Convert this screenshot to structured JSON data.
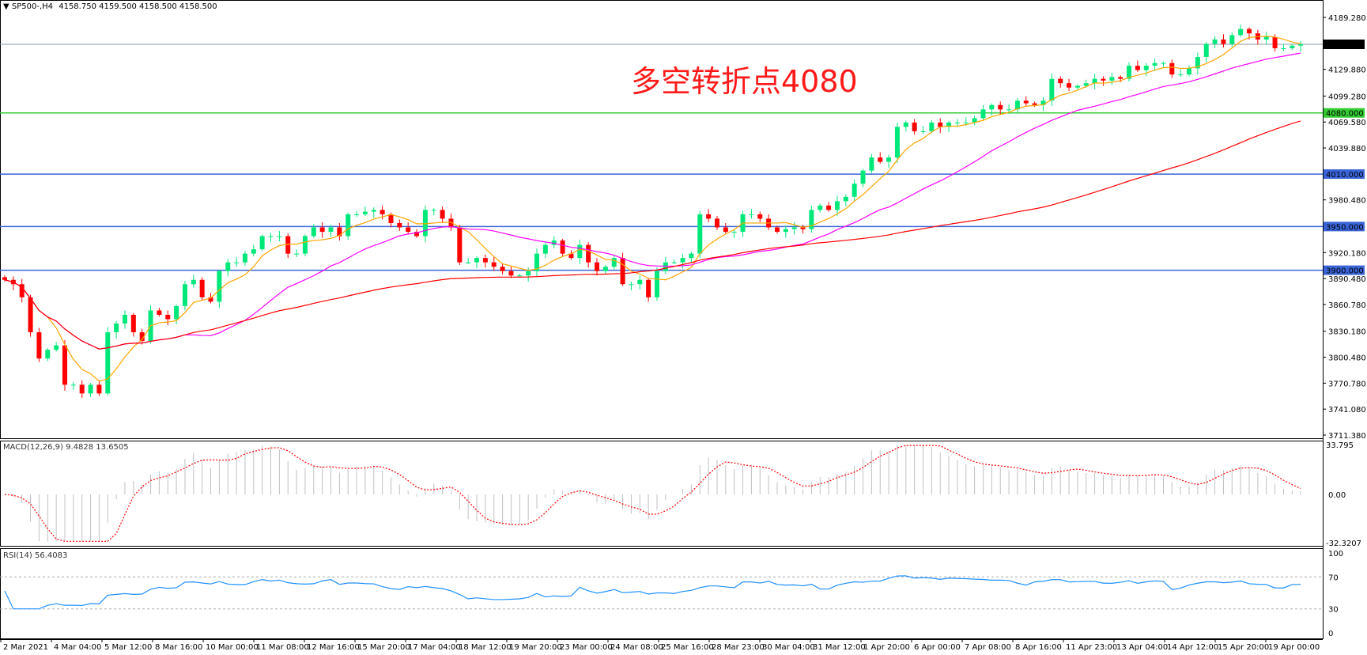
{
  "header": {
    "symbol": "SP500-,H4",
    "ohlc": "4158.750 4159.500 4158.500 4158.500"
  },
  "annotation": "多空转折点4080",
  "macd": {
    "label": "MACD(12,26,9) 9.4828 13.6505",
    "max_label": "33.795",
    "zero_label": "0.00",
    "min_label": "-32.3207",
    "max": 33.795,
    "min": -32.3207
  },
  "rsi": {
    "label": "RSI(14) 56.4083",
    "ticks": [
      "100",
      "70",
      "30",
      "0"
    ]
  },
  "colors": {
    "bull": "#00e87a",
    "bear": "#ff0000",
    "ma_fast": "#ffa500",
    "ma_mid": "#ff00ff",
    "ma_slow": "#ff0000",
    "level_green": "#33cc33",
    "level_blue": "#3a64d8",
    "rsi": "#1e90ff",
    "macd_hist": "#c0c0c0",
    "macd_signal": "#ff0000"
  },
  "chart_data": {
    "type": "candlestick",
    "title": "SP500-,H4",
    "ylim": [
      3711.38,
      4189.28
    ],
    "y_ticks": [
      "4189.280",
      "4129.880",
      "4099.280",
      "4069.580",
      "4039.880",
      "3980.480",
      "3920.180",
      "3890.480",
      "3860.780",
      "3830.180",
      "3800.480",
      "3770.780",
      "3741.080",
      "3711.380"
    ],
    "x_ticks": [
      "2 Mar 2021",
      "4 Mar 04:00",
      "5 Mar 12:00",
      "8 Mar 16:00",
      "10 Mar 00:00",
      "11 Mar 08:00",
      "12 Mar 16:00",
      "15 Mar 20:00",
      "17 Mar 04:00",
      "18 Mar 12:00",
      "19 Mar 20:00",
      "23 Mar 00:00",
      "24 Mar 08:00",
      "25 Mar 16:00",
      "28 Mar 23:00",
      "30 Mar 04:00",
      "31 Mar 12:00",
      "1 Apr 20:00",
      "6 Apr 00:00",
      "7 Apr 08:00",
      "8 Apr 16:00",
      "11 Apr 23:00",
      "13 Apr 04:00",
      "14 Apr 12:00",
      "15 Apr 20:00",
      "19 Apr 00:00"
    ],
    "current_price": {
      "value": 4158.5,
      "label": "4158.500"
    },
    "levels": [
      {
        "value": 4080,
        "label": "4080.000",
        "color": "#33cc33"
      },
      {
        "value": 4010,
        "label": "4010.000",
        "color": "#3a64d8"
      },
      {
        "value": 3950,
        "label": "3950.000",
        "color": "#3a64d8"
      },
      {
        "value": 3900,
        "label": "3900.000",
        "color": "#3a64d8"
      }
    ],
    "closes": [
      3889,
      3884,
      3869,
      3829,
      3799,
      3809,
      3814,
      3769,
      3769,
      3759,
      3769,
      3759,
      3829,
      3839,
      3849,
      3829,
      3819,
      3854,
      3849,
      3844,
      3859,
      3884,
      3889,
      3869,
      3864,
      3899,
      3909,
      3909,
      3919,
      3924,
      3939,
      3939,
      3939,
      3919,
      3919,
      3939,
      3949,
      3944,
      3949,
      3939,
      3964,
      3964,
      3967,
      3969,
      3964,
      3954,
      3949,
      3944,
      3939,
      3969,
      3969,
      3959,
      3949,
      3909,
      3909,
      3914,
      3909,
      3904,
      3899,
      3894,
      3894,
      3899,
      3919,
      3929,
      3934,
      3919,
      3914,
      3929,
      3909,
      3899,
      3904,
      3914,
      3884,
      3884,
      3889,
      3869,
      3899,
      3909,
      3909,
      3914,
      3919,
      3964,
      3959,
      3949,
      3944,
      3944,
      3964,
      3964,
      3959,
      3949,
      3944,
      3947,
      3949,
      3947,
      3969,
      3974,
      3969,
      3979,
      3984,
      3999,
      4014,
      4029,
      4024,
      4029,
      4064,
      4069,
      4059,
      4059,
      4069,
      4064,
      4069,
      4069,
      4069,
      4074,
      4084,
      4089,
      4084,
      4084,
      4094,
      4091,
      4089,
      4094,
      4119,
      4114,
      4109,
      4111,
      4114,
      4119,
      4117,
      4121,
      4119,
      4134,
      4129,
      4134,
      4137,
      4137,
      4124,
      4124,
      4131,
      4144,
      4159,
      4164,
      4159,
      4169,
      4176,
      4171,
      4164,
      4167,
      4154,
      4154,
      4157,
      4158.5
    ]
  }
}
